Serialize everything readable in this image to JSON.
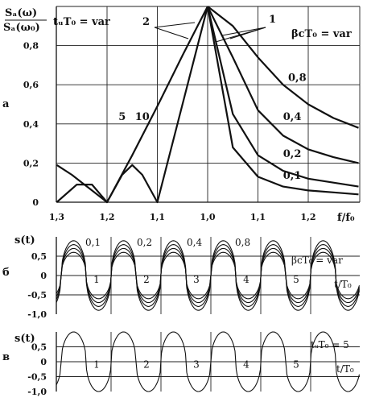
{
  "panel_labels": [
    "а",
    "б",
    "в"
  ],
  "chart_data": [
    {
      "type": "line",
      "panel": "а",
      "ylabel": [
        "Sₐ(ω)",
        "Sₐ(ω₀)"
      ],
      "xlabel": "f/f₀",
      "x_ticks": [
        "1,3",
        "1,2",
        "1,1",
        "1,0",
        "1,1",
        "1,2"
      ],
      "y_ticks": [
        "0",
        "0,2",
        "0,4",
        "0,6",
        "0,8"
      ],
      "ylim": [
        0,
        1.0
      ],
      "legend_left": "tᵤT₀ = var",
      "legend_right": "βcT₀ = var",
      "group_labels": [
        "2",
        "1"
      ],
      "left_series": [
        {
          "name": "5",
          "x": [
            -0.3,
            -0.27,
            -0.25,
            -0.23,
            -0.2,
            -0.17,
            -0.15,
            -0.13,
            -0.1,
            0.0
          ],
          "y": [
            0.19,
            0.14,
            0.1,
            0.06,
            0.0,
            0.14,
            0.19,
            0.14,
            0.0,
            1.0
          ]
        },
        {
          "name": "10",
          "x": [
            -0.3,
            -0.26,
            -0.23,
            -0.2,
            -0.15,
            -0.1,
            -0.05,
            -0.02,
            0.0
          ],
          "y": [
            0.0,
            0.09,
            0.09,
            0.0,
            0.24,
            0.49,
            0.75,
            0.9,
            1.0
          ]
        }
      ],
      "right_series": [
        {
          "name": "0,8",
          "x": [
            0.0,
            0.05,
            0.1,
            0.15,
            0.2,
            0.25,
            0.3
          ],
          "y": [
            1.0,
            0.9,
            0.74,
            0.6,
            0.5,
            0.43,
            0.38
          ]
        },
        {
          "name": "0,4",
          "x": [
            0.0,
            0.05,
            0.1,
            0.15,
            0.2,
            0.25,
            0.3
          ],
          "y": [
            1.0,
            0.74,
            0.47,
            0.34,
            0.27,
            0.23,
            0.2
          ]
        },
        {
          "name": "0,2",
          "x": [
            0.0,
            0.05,
            0.1,
            0.15,
            0.2,
            0.25,
            0.3
          ],
          "y": [
            1.0,
            0.45,
            0.24,
            0.16,
            0.12,
            0.1,
            0.08
          ]
        },
        {
          "name": "0,1",
          "x": [
            0.0,
            0.05,
            0.1,
            0.15,
            0.2,
            0.25,
            0.3
          ],
          "y": [
            1.0,
            0.28,
            0.13,
            0.08,
            0.06,
            0.05,
            0.04
          ]
        }
      ]
    },
    {
      "type": "line",
      "panel": "б",
      "ylabel": "s(t)",
      "xlabel": "t/T₀",
      "y_ticks": [
        "0,5",
        "0",
        "-0,5",
        "-1,0"
      ],
      "ylim": [
        -1.0,
        1.0
      ],
      "legend": "βcT₀ = var",
      "series_labels": [
        "0,1",
        "0,2",
        "0,4",
        "0,8"
      ],
      "period_labels": [
        "1",
        "2",
        "3",
        "4",
        "5"
      ],
      "amplitudes": [
        0.6,
        0.7,
        0.8,
        0.9
      ]
    },
    {
      "type": "line",
      "panel": "в",
      "ylabel": "s(t)",
      "xlabel": "t/T₀",
      "y_ticks": [
        "0,5",
        "0",
        "-0,5",
        "-1,0"
      ],
      "ylim": [
        -1.0,
        1.0
      ],
      "legend": "tᵤT₀ = 5",
      "period_labels": [
        "1",
        "2",
        "3",
        "4",
        "5"
      ],
      "amplitude": 1.0
    }
  ]
}
